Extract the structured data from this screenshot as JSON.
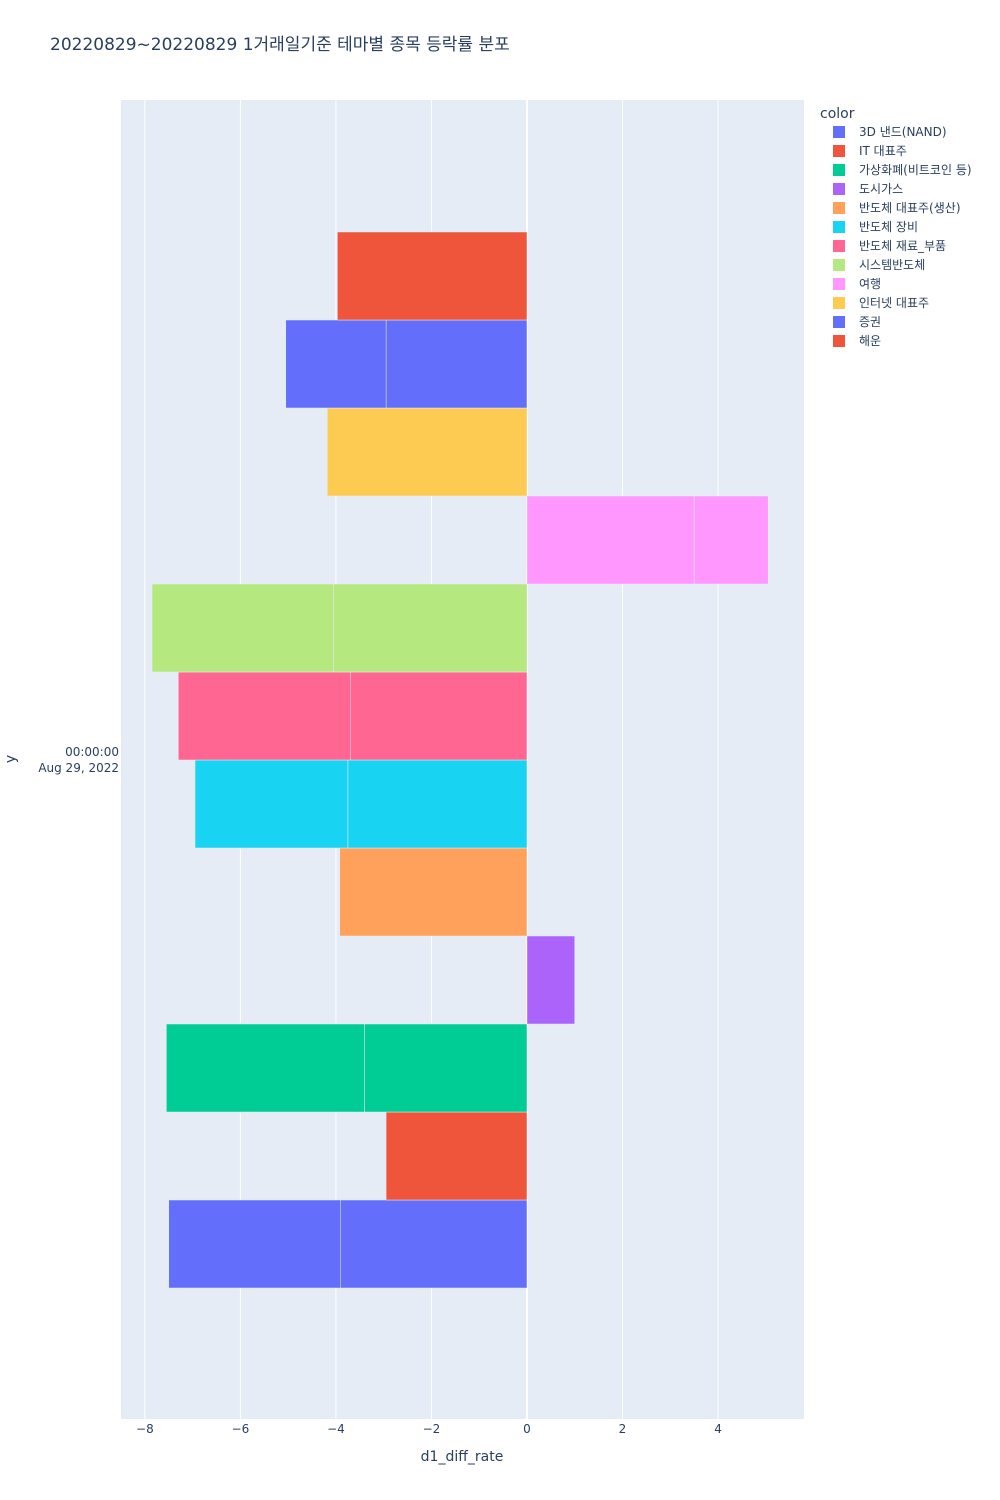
{
  "chart_data": {
    "type": "bar",
    "orientation": "horizontal",
    "barmode": "relative",
    "title": "20220829~20220829 1거래일기준 테마별 종목 등락률 분포",
    "xlabel": "d1_diff_rate",
    "ylabel": "y",
    "y_category_lines": [
      "00:00:00",
      "Aug 29, 2022"
    ],
    "xlim": [
      -8.5,
      5.8
    ],
    "xticks": [
      -8,
      -6,
      -4,
      -2,
      0,
      2,
      4
    ],
    "xtick_labels": [
      "−8",
      "−6",
      "−4",
      "−2",
      "0",
      "2",
      "4"
    ],
    "grid": true,
    "legend_title": "color",
    "legend_position": "top-right",
    "series": [
      {
        "name": "3D 낸드(NAND)",
        "color": "#636efa",
        "values": [
          -3.9,
          -3.6
        ]
      },
      {
        "name": "IT 대표주",
        "color": "#EF553B",
        "values": [
          -2.95
        ]
      },
      {
        "name": "가상화폐(비트코인 등)",
        "color": "#00cc96",
        "values": [
          -3.4,
          -4.15
        ]
      },
      {
        "name": "도시가스",
        "color": "#ab63fa",
        "values": [
          1.0
        ]
      },
      {
        "name": "반도체 대표주(생산)",
        "color": "#FFA15A",
        "values": [
          -3.92
        ]
      },
      {
        "name": "반도체 장비",
        "color": "#19d3f3",
        "values": [
          -3.75,
          -3.2
        ]
      },
      {
        "name": "반도체 재료_부품",
        "color": "#FF6692",
        "values": [
          -3.7,
          -3.6
        ]
      },
      {
        "name": "시스템반도체",
        "color": "#B6E880",
        "values": [
          -4.05,
          -3.8
        ]
      },
      {
        "name": "여행",
        "color": "#FF97FF",
        "values": [
          3.5,
          1.55
        ]
      },
      {
        "name": "인터넷 대표주",
        "color": "#FECB52",
        "values": [
          -4.18
        ]
      },
      {
        "name": "증권",
        "color": "#636efa",
        "values": [
          -2.95,
          -2.1
        ]
      },
      {
        "name": "해운",
        "color": "#EF553B",
        "values": [
          -3.97
        ]
      }
    ]
  }
}
